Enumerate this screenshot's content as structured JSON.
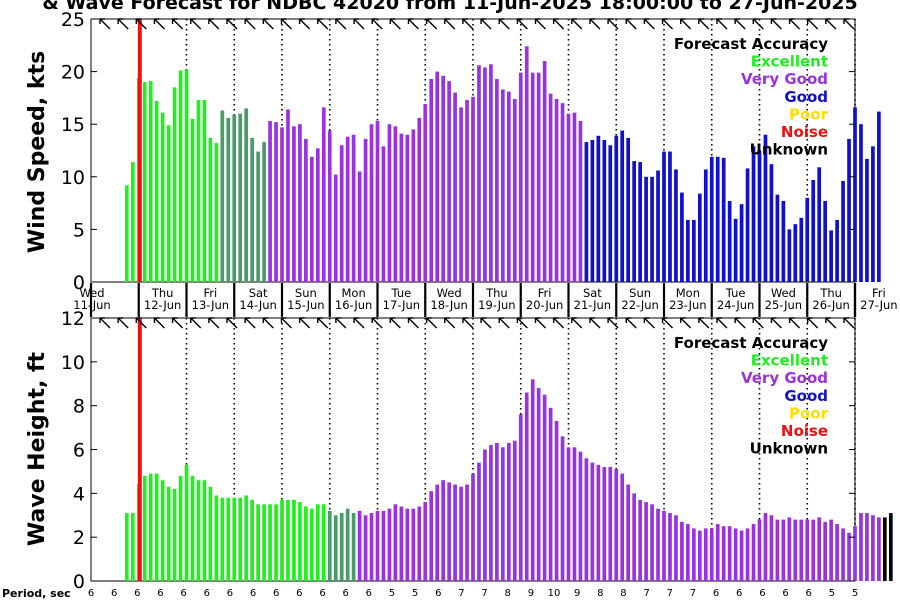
{
  "title": "& Wave Forecast for NDBC 42020 from 11-Jun-2025 18:00:00 to 27-Jun-2025",
  "day_labels": [
    {
      "dow": "Wed",
      "date": "11-Jun"
    },
    {
      "dow": "Thu",
      "date": "12-Jun"
    },
    {
      "dow": "Fri",
      "date": "13-Jun"
    },
    {
      "dow": "Sat",
      "date": "14-Jun"
    },
    {
      "dow": "Sun",
      "date": "15-Jun"
    },
    {
      "dow": "Mon",
      "date": "16-Jun"
    },
    {
      "dow": "Tue",
      "date": "17-Jun"
    },
    {
      "dow": "Wed",
      "date": "18-Jun"
    },
    {
      "dow": "Thu",
      "date": "19-Jun"
    },
    {
      "dow": "Fri",
      "date": "20-Jun"
    },
    {
      "dow": "Sat",
      "date": "21-Jun"
    },
    {
      "dow": "Sun",
      "date": "22-Jun"
    },
    {
      "dow": "Mon",
      "date": "23-Jun"
    },
    {
      "dow": "Tue",
      "date": "24-Jun"
    },
    {
      "dow": "Wed",
      "date": "25-Jun"
    },
    {
      "dow": "Thu",
      "date": "26-Jun"
    },
    {
      "dow": "Fri",
      "date": "27-Jun"
    }
  ],
  "legend": {
    "title": "Forecast Accuracy",
    "items": [
      {
        "label": "Excellent",
        "color": "#22ee22"
      },
      {
        "label": "Very Good",
        "color": "#9933dd"
      },
      {
        "label": "Good",
        "color": "#1111cc"
      },
      {
        "label": "Poor",
        "color": "#ffdd00"
      },
      {
        "label": "Noise",
        "color": "#ee1111"
      },
      {
        "label": "Unknown",
        "color": "#000000"
      }
    ]
  },
  "colors": {
    "excellent": "#22ee22",
    "transition": "#4a9a6a",
    "very_good": "#9933dd",
    "good": "#1111cc",
    "now_line": "#ee1111"
  },
  "period_label": "Period, sec",
  "periods": [
    6,
    6,
    6,
    6,
    6,
    6,
    6,
    6,
    6,
    6,
    6,
    6,
    6,
    5,
    5,
    6,
    7,
    7,
    8,
    9,
    10,
    9,
    8,
    8,
    7,
    7,
    7,
    6,
    6,
    6,
    6,
    6,
    5,
    5
  ],
  "chart_data": [
    {
      "type": "bar",
      "ylabel": "Wind Speed, kts",
      "ylim": [
        0,
        25
      ],
      "yticks": [
        0,
        5,
        10,
        15,
        20,
        25
      ],
      "x_unit": "hours since first tick (11-Jun 00:00), 3-hourly",
      "x_start": 18,
      "x_step": 3,
      "values": [
        9.2,
        11.4,
        19.4,
        19.0,
        19.1,
        17.2,
        16.1,
        14.9,
        18.5,
        20.1,
        20.2,
        15.5,
        17.3,
        17.3,
        13.7,
        13.2,
        16.3,
        15.6,
        15.9,
        16.0,
        16.5,
        13.7,
        12.4,
        13.3,
        15.3,
        15.2,
        14.7,
        16.4,
        14.8,
        15.0,
        13.6,
        11.9,
        12.7,
        16.6,
        14.4,
        10.2,
        13.0,
        13.8,
        14.0,
        10.5,
        13.6,
        15.0,
        15.3,
        12.9,
        15.0,
        14.8,
        14.1,
        14.0,
        14.5,
        15.6,
        16.9,
        19.3,
        20.0,
        19.6,
        19.1,
        18.0,
        16.6,
        17.3,
        17.6,
        20.6,
        20.4,
        20.7,
        19.3,
        18.3,
        18.1,
        17.4,
        19.9,
        22.4,
        19.9,
        19.9,
        21.0,
        17.9,
        17.4,
        17.0,
        16.0,
        16.1,
        15.3,
        13.3,
        13.5,
        13.9,
        13.5,
        13.0,
        13.9,
        14.4,
        13.7,
        11.5,
        11.4,
        10.0,
        10.0,
        10.6,
        12.4,
        12.4,
        10.7,
        8.5,
        5.9,
        5.9,
        8.4,
        10.7,
        11.9,
        11.9,
        11.8,
        7.7,
        6.0,
        7.4,
        10.8,
        12.9,
        12.5,
        14.0,
        11.2,
        8.3,
        7.7,
        5.0,
        5.5,
        6.1,
        8.0,
        9.7,
        10.9,
        7.7,
        4.9,
        5.9,
        9.6,
        13.6,
        16.6,
        15.0,
        11.7,
        12.9,
        16.2
      ],
      "segments": [
        {
          "color": "excellent",
          "from": 0,
          "to": 16
        },
        {
          "color": "transition",
          "from": 16,
          "to": 24
        },
        {
          "color": "very_good",
          "from": 24,
          "to": 77
        },
        {
          "color": "good",
          "from": 77,
          "to": 127
        }
      ]
    },
    {
      "type": "bar",
      "ylabel": "Wave Height, ft",
      "ylim": [
        0,
        12
      ],
      "yticks": [
        0,
        2,
        4,
        6,
        8,
        10,
        12
      ],
      "x_unit": "hours since first tick (11-Jun 00:00), 3-hourly",
      "x_start": 18,
      "x_step": 3,
      "values": [
        3.1,
        3.1,
        4.4,
        4.8,
        4.9,
        4.9,
        4.6,
        4.3,
        4.2,
        4.8,
        5.3,
        4.8,
        4.6,
        4.6,
        4.3,
        3.9,
        3.8,
        3.8,
        3.8,
        3.8,
        3.9,
        3.7,
        3.5,
        3.5,
        3.5,
        3.5,
        3.7,
        3.7,
        3.7,
        3.6,
        3.4,
        3.3,
        3.5,
        3.5,
        3.2,
        3.0,
        3.1,
        3.3,
        3.1,
        3.2,
        3.0,
        3.1,
        3.2,
        3.2,
        3.3,
        3.5,
        3.4,
        3.3,
        3.3,
        3.4,
        3.6,
        4.1,
        4.4,
        4.6,
        4.5,
        4.4,
        4.3,
        4.4,
        4.9,
        5.4,
        6.0,
        6.2,
        6.3,
        6.1,
        6.3,
        6.4,
        7.6,
        8.6,
        9.2,
        8.8,
        8.5,
        7.9,
        7.3,
        6.6,
        6.1,
        6.1,
        5.9,
        5.6,
        5.4,
        5.3,
        5.2,
        5.2,
        5.1,
        4.9,
        4.4,
        4.0,
        3.7,
        3.6,
        3.5,
        3.3,
        3.2,
        3.1,
        3.0,
        2.7,
        2.6,
        2.4,
        2.3,
        2.4,
        2.4,
        2.6,
        2.5,
        2.5,
        2.4,
        2.3,
        2.4,
        2.6,
        2.8,
        3.1,
        3.0,
        2.8,
        2.8,
        2.9,
        2.8,
        2.8,
        2.8,
        2.8,
        2.9,
        2.7,
        2.8,
        2.6,
        2.4,
        2.2,
        2.5,
        3.1,
        3.1,
        3.0,
        2.9,
        2.9,
        3.1
      ],
      "segments": [
        {
          "color": "excellent",
          "from": 0,
          "to": 34
        },
        {
          "color": "transition",
          "from": 34,
          "to": 39
        },
        {
          "color": "very_good",
          "from": 39,
          "to": 127
        }
      ]
    }
  ]
}
